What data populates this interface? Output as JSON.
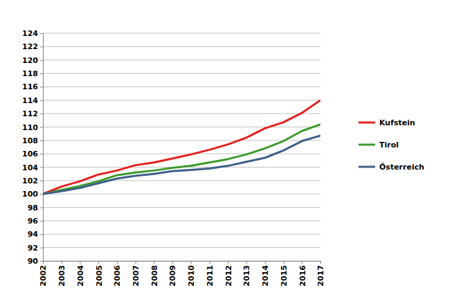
{
  "chart_data": {
    "type": "line",
    "x": [
      2002,
      2003,
      2004,
      2005,
      2006,
      2007,
      2008,
      2009,
      2010,
      2011,
      2012,
      2013,
      2014,
      2015,
      2016,
      2017
    ],
    "xlim": [
      2002,
      2017
    ],
    "xticks": [
      2002,
      2003,
      2004,
      2005,
      2006,
      2007,
      2008,
      2009,
      2010,
      2011,
      2012,
      2013,
      2014,
      2015,
      2016,
      2017
    ],
    "ylim": [
      90,
      124
    ],
    "yticks": [
      90,
      92,
      94,
      96,
      98,
      100,
      102,
      104,
      106,
      108,
      110,
      112,
      114,
      116,
      118,
      120,
      122,
      124
    ],
    "grid": true,
    "legend": "right",
    "series": [
      {
        "name": "Kufstein",
        "color": "#e3211f",
        "values": [
          100,
          101.1,
          101.9,
          102.9,
          103.5,
          104.3,
          104.7,
          105.3,
          105.9,
          106.6,
          107.4,
          108.4,
          109.8,
          110.7,
          112.1,
          114.0
        ]
      },
      {
        "name": "Tirol",
        "color": "#3c9a2b",
        "values": [
          100,
          100.6,
          101.2,
          101.9,
          102.8,
          103.2,
          103.5,
          103.9,
          104.2,
          104.7,
          105.2,
          105.9,
          106.8,
          107.9,
          109.4,
          110.4
        ]
      },
      {
        "name": "Österreich",
        "color": "#3d6088",
        "values": [
          100,
          100.4,
          100.9,
          101.6,
          102.3,
          102.7,
          103.0,
          103.4,
          103.6,
          103.8,
          104.2,
          104.8,
          105.4,
          106.5,
          107.9,
          108.7
        ]
      }
    ]
  }
}
